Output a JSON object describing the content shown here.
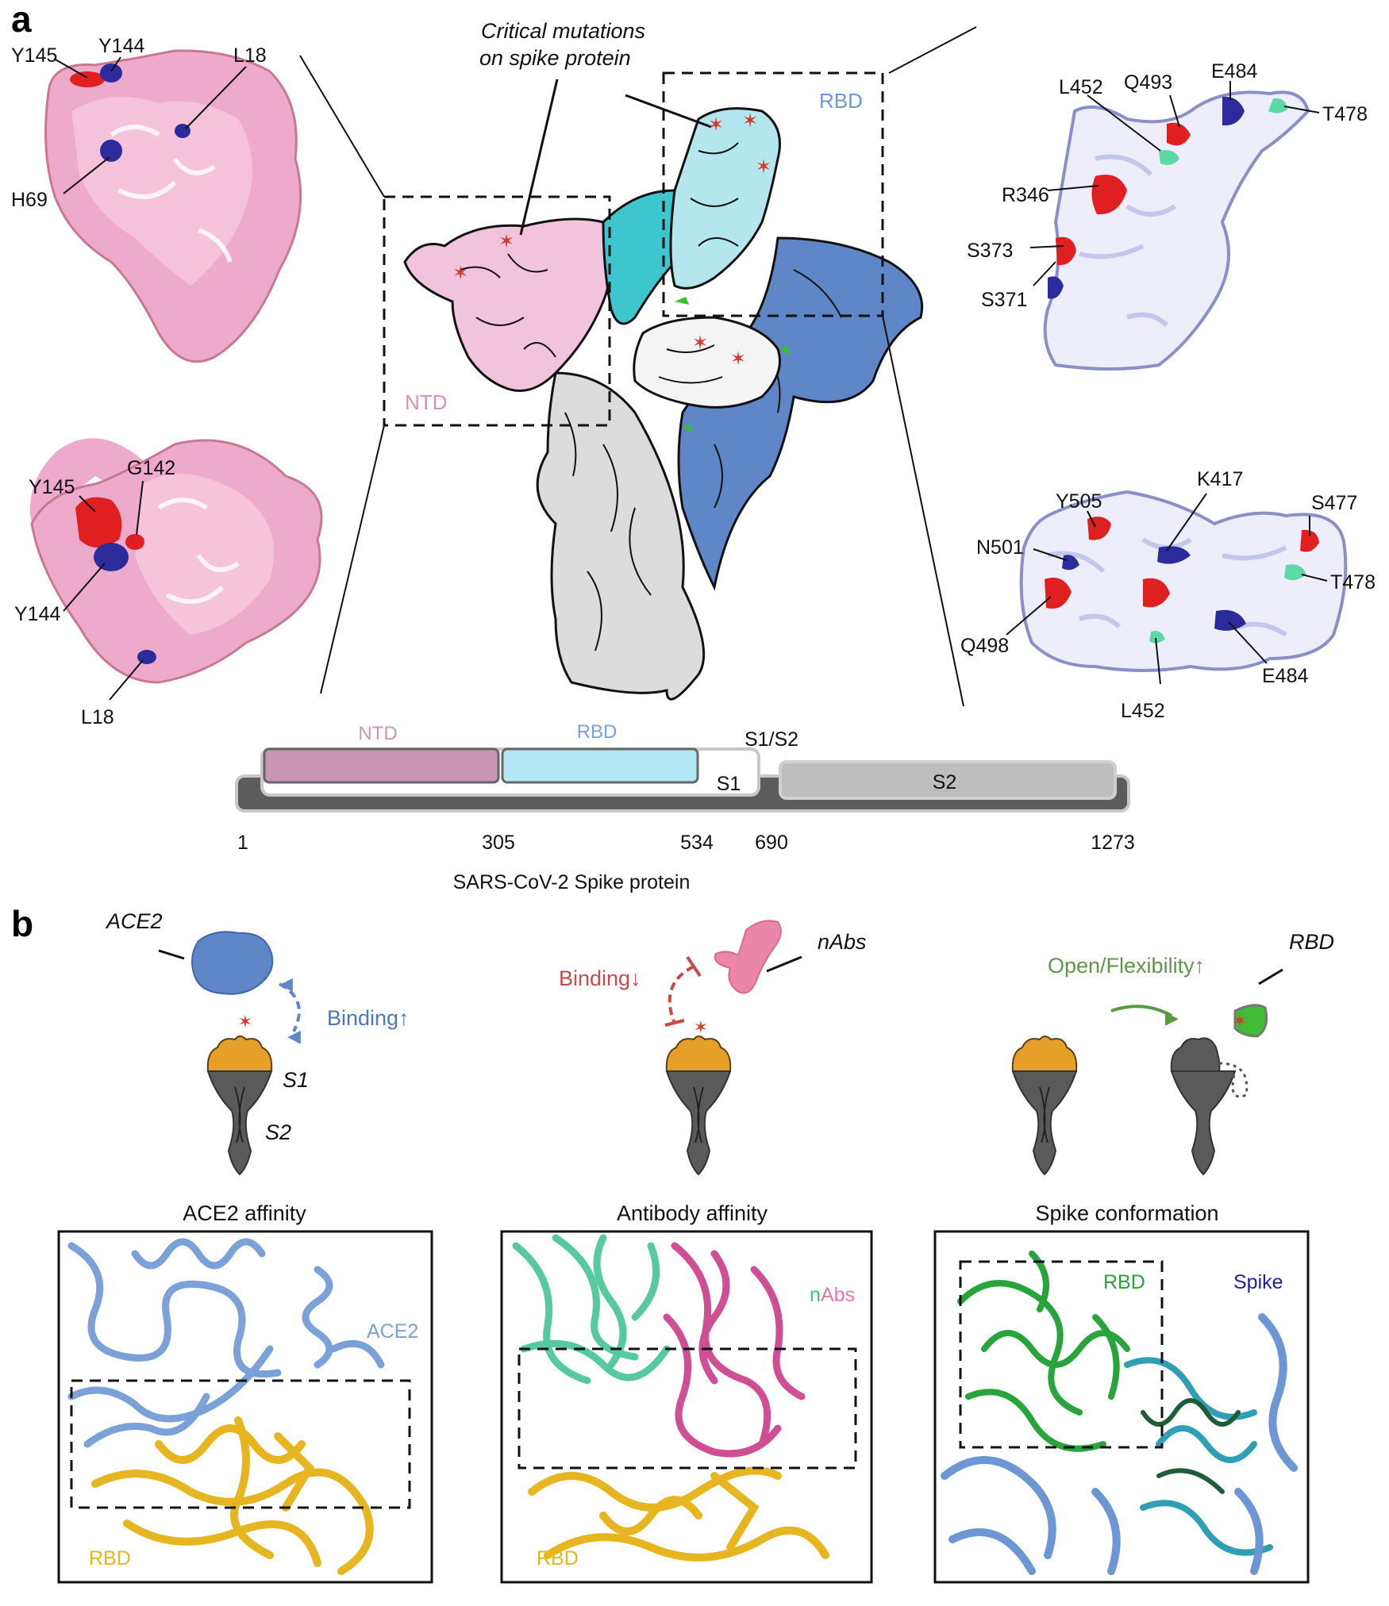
{
  "panels": {
    "a": "a",
    "b": "b"
  },
  "panel_a": {
    "callout": {
      "line1": "Critical  mutations",
      "line2": "on spike protein"
    },
    "trimer_labels": {
      "ntd": "NTD",
      "rbd": "RBD"
    },
    "ntd_top_labels": [
      "Y145",
      "Y144",
      "L18",
      "H69"
    ],
    "ntd_bottom_labels": [
      "Y145",
      "G142",
      "Y144",
      "L18"
    ],
    "rbd_top_labels": [
      "L452",
      "Q493",
      "E484",
      "T478",
      "R346",
      "S373",
      "S371"
    ],
    "rbd_bottom_labels": [
      "Y505",
      "K417",
      "S477",
      "N501",
      "T478",
      "Q498",
      "E484",
      "L452"
    ],
    "domain_bar": {
      "ntd": "NTD",
      "rbd": "RBD",
      "s1s2": "S1/S2",
      "s1": "S1",
      "s2": "S2",
      "positions": [
        "1",
        "305",
        "534",
        "690",
        "1273"
      ],
      "caption": "SARS-CoV-2 Spike protein"
    }
  },
  "panel_b": {
    "schematic1": {
      "ace2": "ACE2",
      "binding": "Binding↑",
      "s1": "S1",
      "s2": "S2"
    },
    "schematic2": {
      "binding": "Binding↓",
      "nabs": "nAbs"
    },
    "schematic3": {
      "open": "Open/Flexibility↑",
      "rbd": "RBD"
    },
    "structure_titles": [
      "ACE2 affinity",
      "Antibody affinity",
      "Spike conformation"
    ],
    "struct1": {
      "ace2": "ACE2",
      "rbd": "RBD"
    },
    "struct2": {
      "n": "n",
      "abs": "Abs",
      "rbd": "RBD"
    },
    "struct3": {
      "rbd": "RBD",
      "spike": "Spike"
    }
  },
  "colors": {
    "ntd_pink": "#f2c4dc",
    "rbd_cyan": "#b4e6ee",
    "spike_blue": "#5f86c6",
    "mut_red": "#e02020",
    "mut_navy": "#2b2b9c",
    "mut_teal": "#5fd8a8",
    "s1_orange": "#e6a02a",
    "s2_grey": "#5a5a5a",
    "rbd_yellow": "#e6b51f",
    "ace2_blue": "#7aa1d8",
    "nabs_green": "#57c9a0",
    "nabs_magenta": "#d04e93",
    "rbd_green": "#29a43a"
  }
}
